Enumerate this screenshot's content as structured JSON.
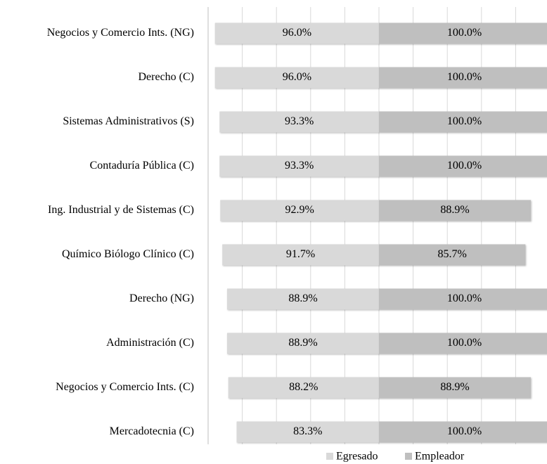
{
  "chart_data": {
    "type": "diverging-bar",
    "categories": [
      "Negocios y Comercio Ints. (NG)",
      "Derecho (C)",
      "Sistemas Administrativos (S)",
      "Contaduría Pública (C)",
      "Ing. Industrial y de Sistemas (C)",
      "Químico Biólogo Clínico (C)",
      "Derecho (NG)",
      "Administración (C)",
      "Negocios y Comercio Ints. (C)",
      "Mercadotecnia (C)"
    ],
    "series": [
      {
        "name": "Egresado",
        "color": "#d9d9d9",
        "direction": "left",
        "values": [
          96.0,
          96.0,
          93.3,
          93.3,
          92.9,
          91.7,
          88.9,
          88.9,
          88.2,
          83.3
        ],
        "value_labels": [
          "96.0%",
          "96.0%",
          "93.3%",
          "93.3%",
          "92.9%",
          "91.7%",
          "88.9%",
          "88.9%",
          "88.2%",
          "83.3%"
        ]
      },
      {
        "name": "Empleador",
        "color": "#bfbfbf",
        "direction": "right",
        "values": [
          100.0,
          100.0,
          100.0,
          100.0,
          88.9,
          85.7,
          100.0,
          100.0,
          88.9,
          100.0
        ],
        "value_labels": [
          "100.0%",
          "100.0%",
          "100.0%",
          "100.0%",
          "88.9%",
          "85.7%",
          "100.0%",
          "100.0%",
          "88.9%",
          "100.0%"
        ]
      }
    ],
    "xlim": [
      -100,
      100
    ],
    "xticks": [
      -100,
      -80,
      -60,
      -40,
      -20,
      0,
      20,
      40,
      60,
      80,
      100
    ],
    "grid": true,
    "legend": "bottom"
  }
}
